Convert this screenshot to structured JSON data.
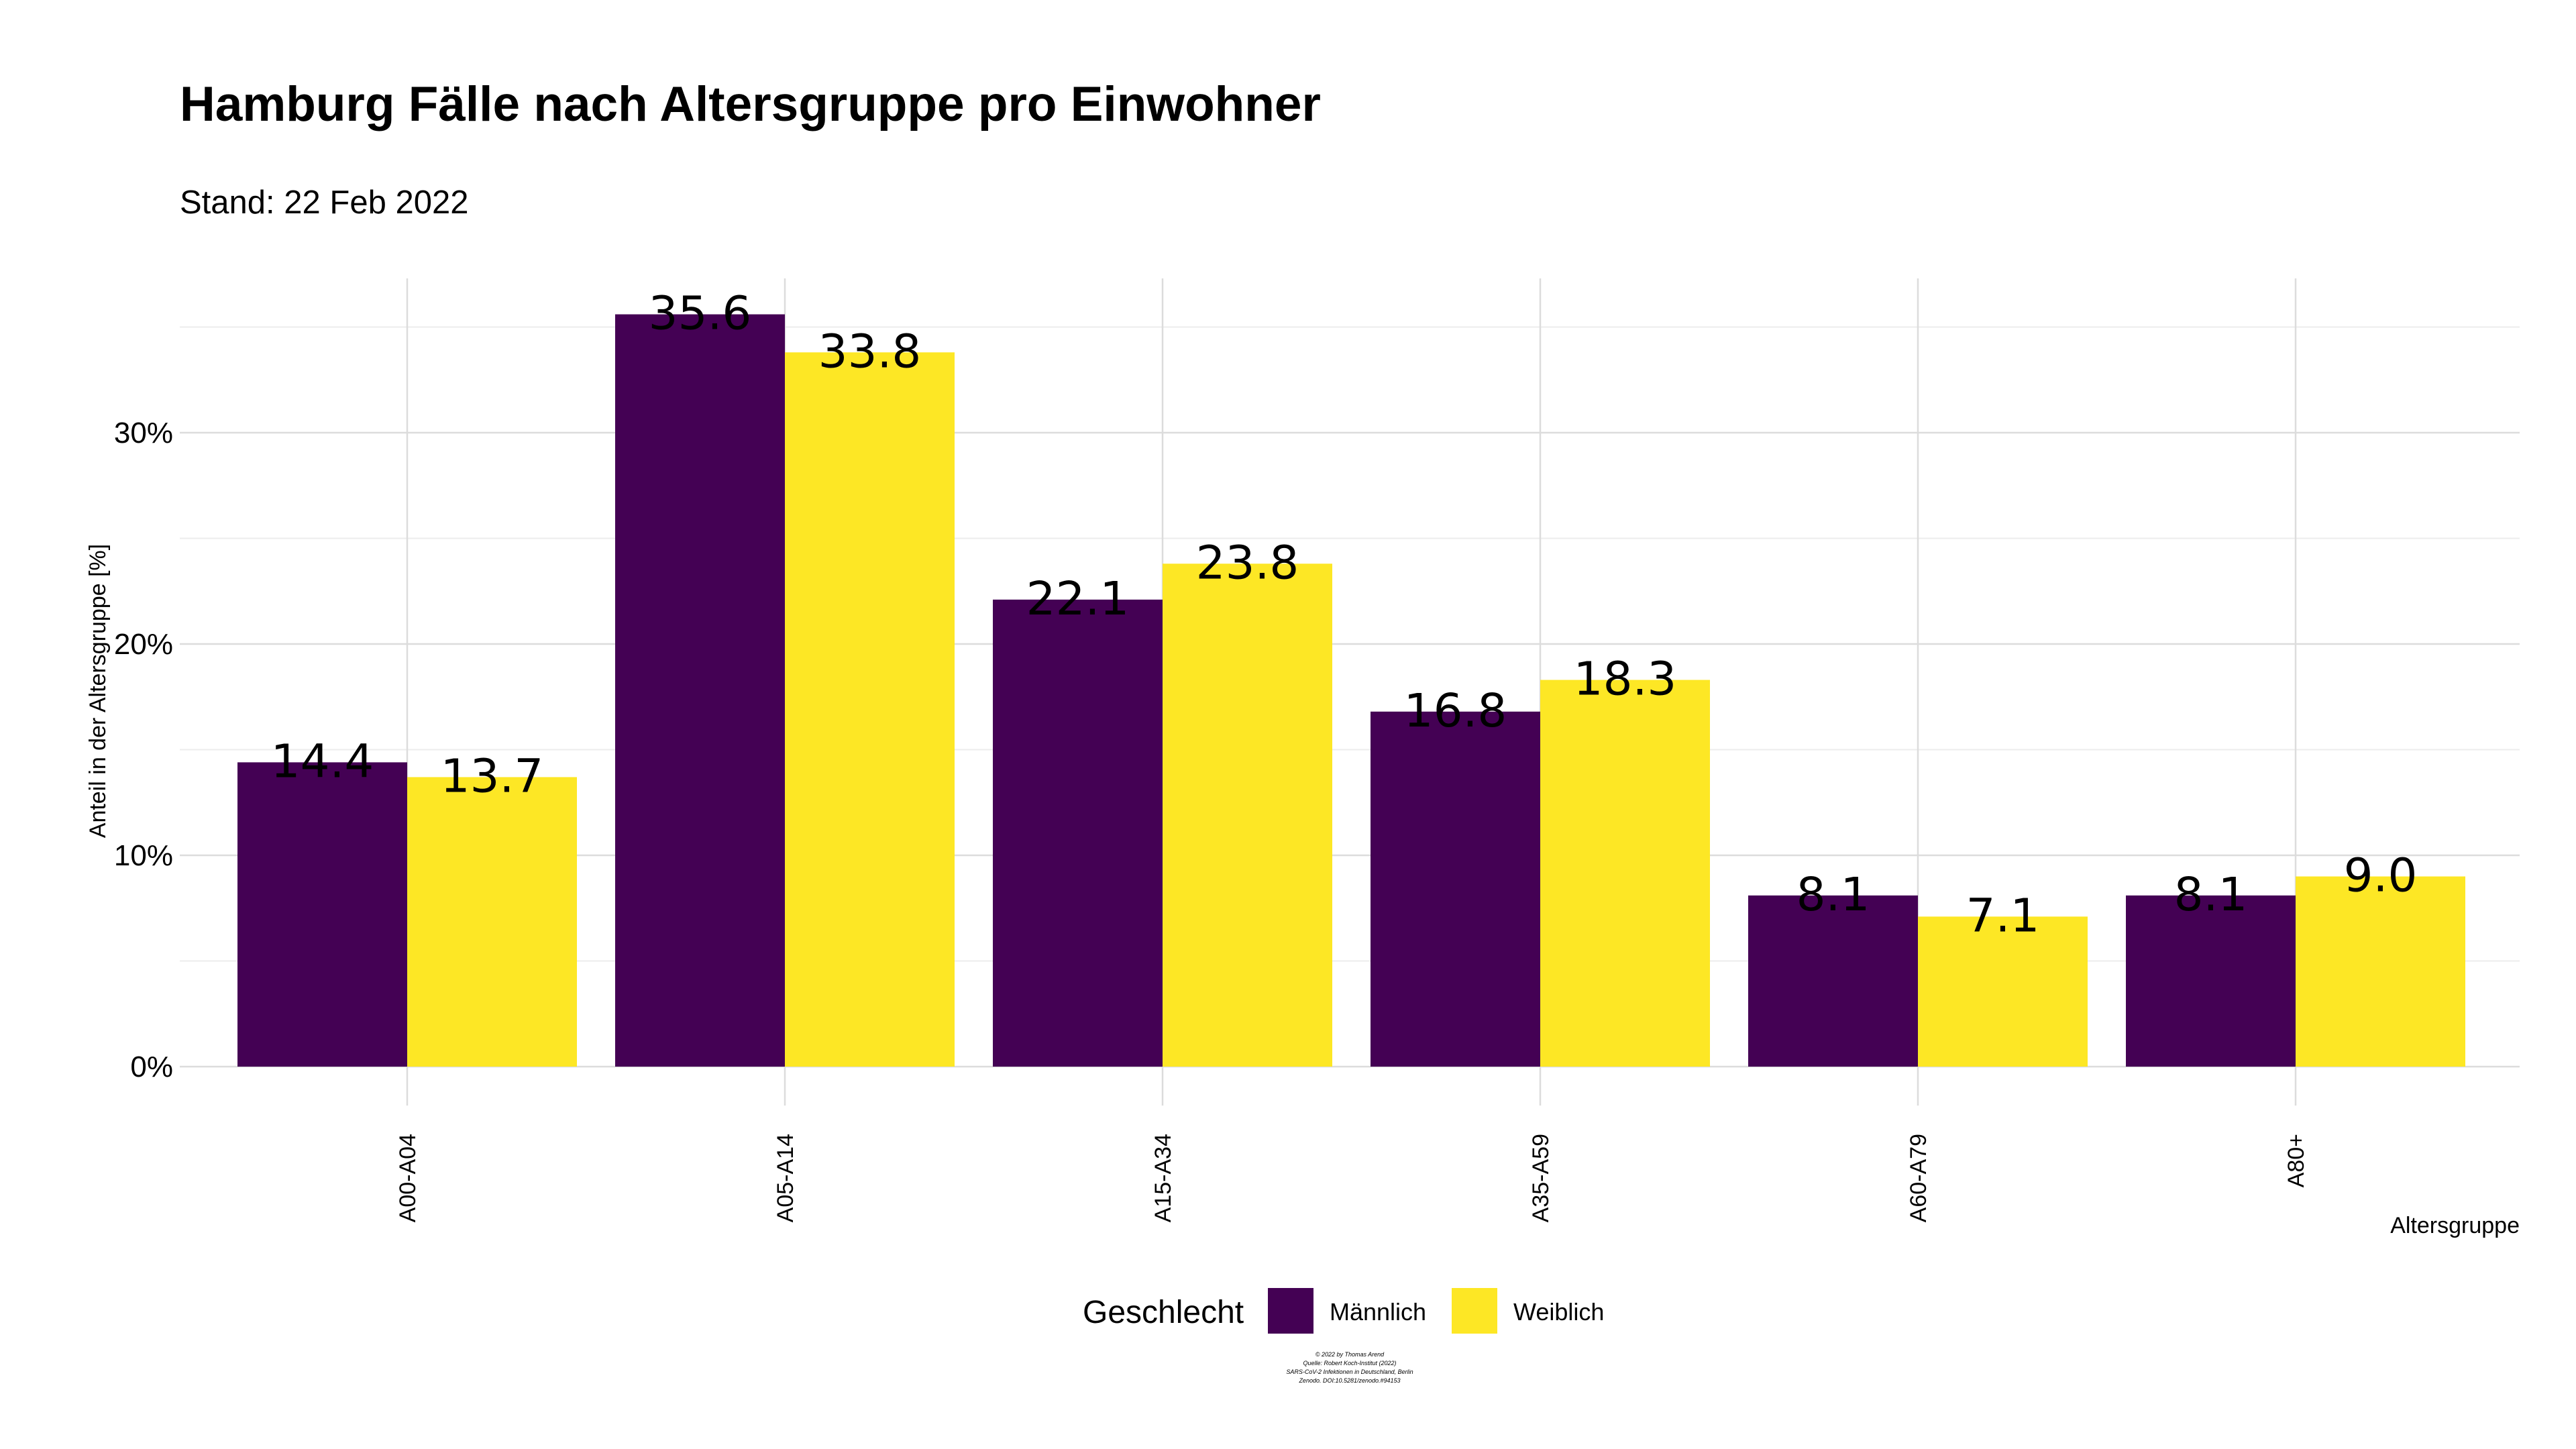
{
  "chart_data": {
    "type": "bar",
    "title": "Hamburg Fälle nach Altersgruppe pro Einwohner",
    "subtitle": "Stand: 22 Feb 2022",
    "xlabel": "Altersgruppe",
    "ylabel": "Anteil in der Altersgruppe [%]",
    "categories": [
      "A00-A04",
      "A05-A14",
      "A15-A34",
      "A35-A59",
      "A60-A79",
      "A80+"
    ],
    "series": [
      {
        "name": "Männlich",
        "color": "#440154",
        "values": [
          14.4,
          35.6,
          22.1,
          16.8,
          8.1,
          8.1
        ]
      },
      {
        "name": "Weiblich",
        "color": "#FDE725",
        "values": [
          13.7,
          33.8,
          23.8,
          18.3,
          7.1,
          9.0
        ]
      }
    ],
    "data_labels": [
      [
        "14.4",
        "35.6",
        "22.1",
        "16.8",
        "8.1",
        "8.1"
      ],
      [
        "13.7",
        "33.8",
        "23.8",
        "18.3",
        "7.1",
        "9.0"
      ]
    ],
    "ylim": [
      0,
      37.3
    ],
    "yticks": [
      {
        "value": 0,
        "label": "0%"
      },
      {
        "value": 10,
        "label": "10%"
      },
      {
        "value": 20,
        "label": "20%"
      },
      {
        "value": 30,
        "label": "30%"
      }
    ],
    "grid": true,
    "legend": {
      "title": "Geschlecht",
      "position": "bottom"
    },
    "caption_lines": [
      "© 2022 by Thomas Arend",
      "Quelle: Robert Koch-Institut (2022)",
      "SARS-CoV-2 Infektionen in Deutschland, Berlin",
      "Zenodo. DOI:10.5281/zenodo.#94153"
    ]
  }
}
